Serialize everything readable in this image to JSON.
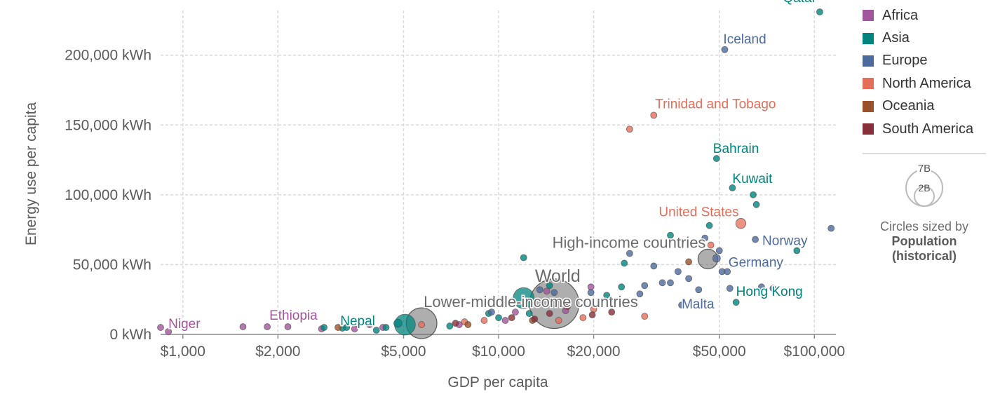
{
  "chart_data": {
    "type": "scatter",
    "xlabel": "GDP per capita",
    "ylabel": "Energy use per capita",
    "x_scale": "log",
    "xlim": [
      850,
      117000
    ],
    "ylim": [
      0,
      232000
    ],
    "x_ticks": [
      {
        "value": 1000,
        "label": "$1,000"
      },
      {
        "value": 2000,
        "label": "$2,000"
      },
      {
        "value": 5000,
        "label": "$5,000"
      },
      {
        "value": 10000,
        "label": "$10,000"
      },
      {
        "value": 20000,
        "label": "$20,000"
      },
      {
        "value": 50000,
        "label": "$50,000"
      },
      {
        "value": 100000,
        "label": "$100,000"
      }
    ],
    "y_ticks": [
      {
        "value": 0,
        "label": "0 kWh"
      },
      {
        "value": 50000,
        "label": "50,000 kWh"
      },
      {
        "value": 100000,
        "label": "100,000 kWh"
      },
      {
        "value": 150000,
        "label": "150,000 kWh"
      },
      {
        "value": 200000,
        "label": "200,000 kWh"
      }
    ],
    "grid": true,
    "legend_position": "right",
    "series": [
      {
        "name": "Africa",
        "color": "#a2559c"
      },
      {
        "name": "Asia",
        "color": "#00847e"
      },
      {
        "name": "Europe",
        "color": "#4c6a9c"
      },
      {
        "name": "North America",
        "color": "#e56e5a"
      },
      {
        "name": "Oceania",
        "color": "#9a5129"
      },
      {
        "name": "South America",
        "color": "#883039"
      }
    ],
    "aggregate_color": "#6b6b6b",
    "labeled_points": [
      {
        "label": "Qatar",
        "group": "Asia",
        "x": 104000,
        "y": 231000
      },
      {
        "label": "Iceland",
        "group": "Europe",
        "x": 52000,
        "y": 204000
      },
      {
        "label": "Trinidad and Tobago",
        "group": "North America",
        "x": 31000,
        "y": 157000
      },
      {
        "label": "Bahrain",
        "group": "Asia",
        "x": 49000,
        "y": 126000
      },
      {
        "label": "Kuwait",
        "group": "Asia",
        "x": 55000,
        "y": 105000
      },
      {
        "label": "United States",
        "group": "North America",
        "x": 58500,
        "y": 79500,
        "pop": 330
      },
      {
        "label": "Norway",
        "group": "Europe",
        "x": 65000,
        "y": 68000
      },
      {
        "label": "High-income countries",
        "group": "aggregate",
        "x": 46000,
        "y": 54000,
        "pop": 1240,
        "big": true
      },
      {
        "label": "Germany",
        "group": "Europe",
        "x": 49000,
        "y": 54500,
        "pop": 83
      },
      {
        "label": "World",
        "group": "aggregate",
        "x": 15000,
        "y": 22000,
        "pop": 7800,
        "big": true
      },
      {
        "label": "Malta",
        "group": "Europe",
        "x": 38000,
        "y": 21000
      },
      {
        "label": "Hong Kong",
        "group": "Asia",
        "x": 56500,
        "y": 23000
      },
      {
        "label": "Lower-middle-income countries",
        "group": "aggregate",
        "x": 5700,
        "y": 8000,
        "pop": 3000,
        "big": true
      },
      {
        "label": "Nepal",
        "group": "Asia",
        "x": 3300,
        "y": 5000
      },
      {
        "label": "Ethiopia",
        "group": "Africa",
        "x": 1850,
        "y": 5500
      },
      {
        "label": "Niger",
        "group": "Africa",
        "x": 900,
        "y": 2000
      }
    ],
    "points": [
      {
        "group": "Africa",
        "x": 850,
        "y": 5000
      },
      {
        "group": "Africa",
        "x": 1550,
        "y": 5500
      },
      {
        "group": "Africa",
        "x": 2150,
        "y": 5500
      },
      {
        "group": "Africa",
        "x": 2750,
        "y": 4000
      },
      {
        "group": "Africa",
        "x": 3500,
        "y": 4000
      },
      {
        "group": "Africa",
        "x": 3900,
        "y": 7000
      },
      {
        "group": "Africa",
        "x": 4300,
        "y": 5000
      },
      {
        "group": "Africa",
        "x": 7500,
        "y": 7000
      },
      {
        "group": "Africa",
        "x": 10500,
        "y": 10000
      },
      {
        "group": "Africa",
        "x": 11300,
        "y": 16000
      },
      {
        "group": "Africa",
        "x": 14200,
        "y": 31000
      },
      {
        "group": "Africa",
        "x": 16300,
        "y": 17000
      },
      {
        "group": "Africa",
        "x": 19600,
        "y": 34000
      },
      {
        "group": "Asia",
        "x": 2800,
        "y": 5000
      },
      {
        "group": "Asia",
        "x": 3200,
        "y": 4500
      },
      {
        "group": "Asia",
        "x": 4100,
        "y": 3000
      },
      {
        "group": "Asia",
        "x": 4400,
        "y": 5000
      },
      {
        "group": "Asia",
        "x": 4800,
        "y": 8000,
        "pop": 220
      },
      {
        "group": "Asia",
        "x": 5050,
        "y": 7000,
        "pop": 1390
      },
      {
        "group": "Asia",
        "x": 7000,
        "y": 6000
      },
      {
        "group": "Asia",
        "x": 9300,
        "y": 15000
      },
      {
        "group": "Asia",
        "x": 10000,
        "y": 12000
      },
      {
        "group": "Asia",
        "x": 12000,
        "y": 26000,
        "pop": 1400
      },
      {
        "group": "Asia",
        "x": 12000,
        "y": 55000
      },
      {
        "group": "Asia",
        "x": 12500,
        "y": 15000
      },
      {
        "group": "Asia",
        "x": 14500,
        "y": 35000
      },
      {
        "group": "Asia",
        "x": 22000,
        "y": 28000
      },
      {
        "group": "Asia",
        "x": 24500,
        "y": 34000
      },
      {
        "group": "Asia",
        "x": 25000,
        "y": 51000
      },
      {
        "group": "Asia",
        "x": 35000,
        "y": 71000
      },
      {
        "group": "Asia",
        "x": 46500,
        "y": 78000
      },
      {
        "group": "Asia",
        "x": 64000,
        "y": 100000
      },
      {
        "group": "Asia",
        "x": 65500,
        "y": 93000
      },
      {
        "group": "Asia",
        "x": 88000,
        "y": 60000
      },
      {
        "group": "Europe",
        "x": 9500,
        "y": 16000
      },
      {
        "group": "Europe",
        "x": 13500,
        "y": 32000
      },
      {
        "group": "Europe",
        "x": 15000,
        "y": 30000
      },
      {
        "group": "Europe",
        "x": 19600,
        "y": 30000
      },
      {
        "group": "Europe",
        "x": 26000,
        "y": 58000
      },
      {
        "group": "Europe",
        "x": 28000,
        "y": 29000
      },
      {
        "group": "Europe",
        "x": 29000,
        "y": 35000
      },
      {
        "group": "Europe",
        "x": 31000,
        "y": 49000
      },
      {
        "group": "Europe",
        "x": 33000,
        "y": 37000
      },
      {
        "group": "Europe",
        "x": 35000,
        "y": 37000
      },
      {
        "group": "Europe",
        "x": 37000,
        "y": 45000
      },
      {
        "group": "Europe",
        "x": 40000,
        "y": 40000
      },
      {
        "group": "Europe",
        "x": 43000,
        "y": 32000
      },
      {
        "group": "Europe",
        "x": 45000,
        "y": 69000
      },
      {
        "group": "Europe",
        "x": 50000,
        "y": 60000
      },
      {
        "group": "Europe",
        "x": 51000,
        "y": 45000
      },
      {
        "group": "Europe",
        "x": 53000,
        "y": 45000
      },
      {
        "group": "Europe",
        "x": 54000,
        "y": 33000
      },
      {
        "group": "Europe",
        "x": 68000,
        "y": 34000
      },
      {
        "group": "Europe",
        "x": 74000,
        "y": 33000
      },
      {
        "group": "Europe",
        "x": 113000,
        "y": 76000
      },
      {
        "group": "North America",
        "x": 5700,
        "y": 7000
      },
      {
        "group": "North America",
        "x": 7800,
        "y": 9000
      },
      {
        "group": "North America",
        "x": 9000,
        "y": 10000
      },
      {
        "group": "North America",
        "x": 15500,
        "y": 10000
      },
      {
        "group": "North America",
        "x": 18500,
        "y": 12000
      },
      {
        "group": "North America",
        "x": 20000,
        "y": 18000
      },
      {
        "group": "North America",
        "x": 26000,
        "y": 147000
      },
      {
        "group": "North America",
        "x": 29000,
        "y": 13000
      },
      {
        "group": "North America",
        "x": 47000,
        "y": 64000
      },
      {
        "group": "Oceania",
        "x": 3100,
        "y": 5000
      },
      {
        "group": "Oceania",
        "x": 8000,
        "y": 7000
      },
      {
        "group": "Oceania",
        "x": 12800,
        "y": 10000
      },
      {
        "group": "Oceania",
        "x": 40000,
        "y": 52000
      },
      {
        "group": "South America",
        "x": 7300,
        "y": 8000
      },
      {
        "group": "South America",
        "x": 11000,
        "y": 12000
      },
      {
        "group": "South America",
        "x": 13000,
        "y": 11000
      },
      {
        "group": "South America",
        "x": 14500,
        "y": 15000
      },
      {
        "group": "South America",
        "x": 16500,
        "y": 20000
      },
      {
        "group": "South America",
        "x": 19800,
        "y": 14000
      },
      {
        "group": "South America",
        "x": 22800,
        "y": 16000
      }
    ]
  },
  "size_legend": {
    "large_label": "7B",
    "small_label": "2B",
    "note": "Circles sized by",
    "variable_line1": "Population",
    "variable_line2": "(historical)"
  }
}
